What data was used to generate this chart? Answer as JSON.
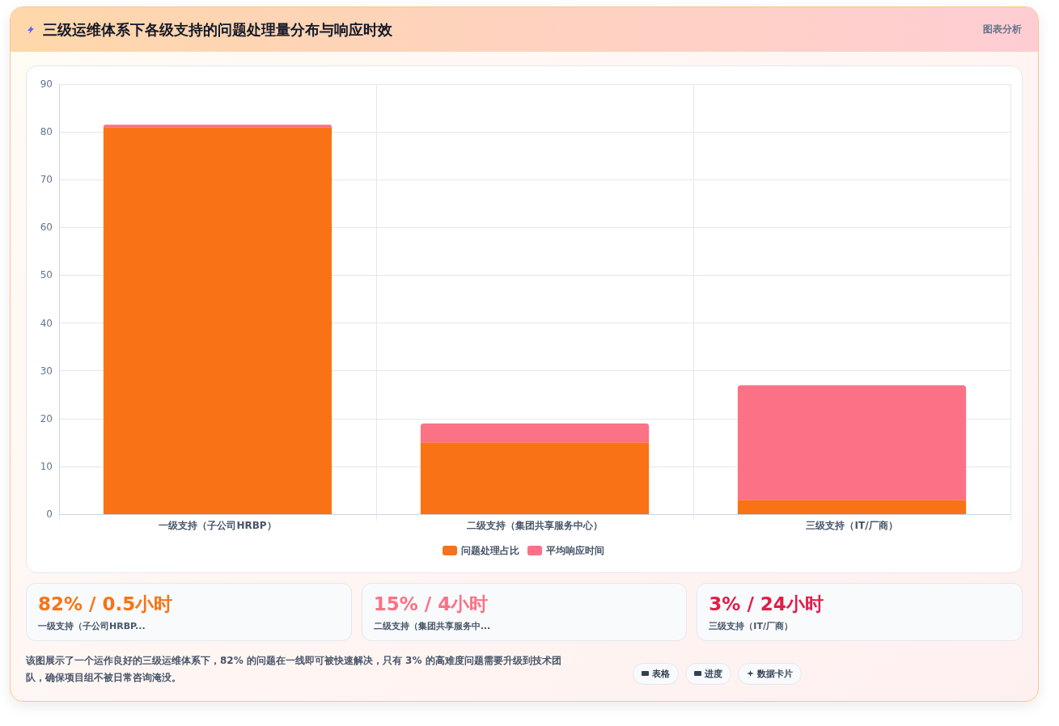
{
  "chart_data": {
    "type": "bar",
    "title": "三级运维体系下各级支持的问题处理量分布与响应时效",
    "categories": [
      "一级支持（子公司HRBP）",
      "二级支持（集团共享服务中心）",
      "三级支持（IT/厂商）"
    ],
    "series": [
      {
        "name": "问题处理占比",
        "color": "#f97316",
        "values": [
          81,
          15,
          3
        ]
      },
      {
        "name": "平均响应时间",
        "color": "#fb7185",
        "values": [
          0.5,
          4,
          24
        ]
      }
    ],
    "stacked": true,
    "ylim": [
      0,
      90
    ],
    "yticks": [
      0,
      10,
      20,
      30,
      40,
      50,
      60,
      70,
      80,
      90
    ],
    "grid": true,
    "legend": "bottom",
    "annotations": [
      "图表分析",
      "82% / 0.5小时",
      "一级支持（子公司HRBP...",
      "15% / 4小时",
      "二级支持（集团共享服务中...",
      "3% / 24小时",
      "三级支持（IT/厂商）",
      "该图展示了一个运作良好的三级运维体系下，82% 的问题在一线即可被快速解决，只有 3% 的高难度问题需要升级到技术团队，确保项目组不被日常咨询淹没。",
      "表格",
      "进度",
      "数据卡片"
    ]
  }
}
